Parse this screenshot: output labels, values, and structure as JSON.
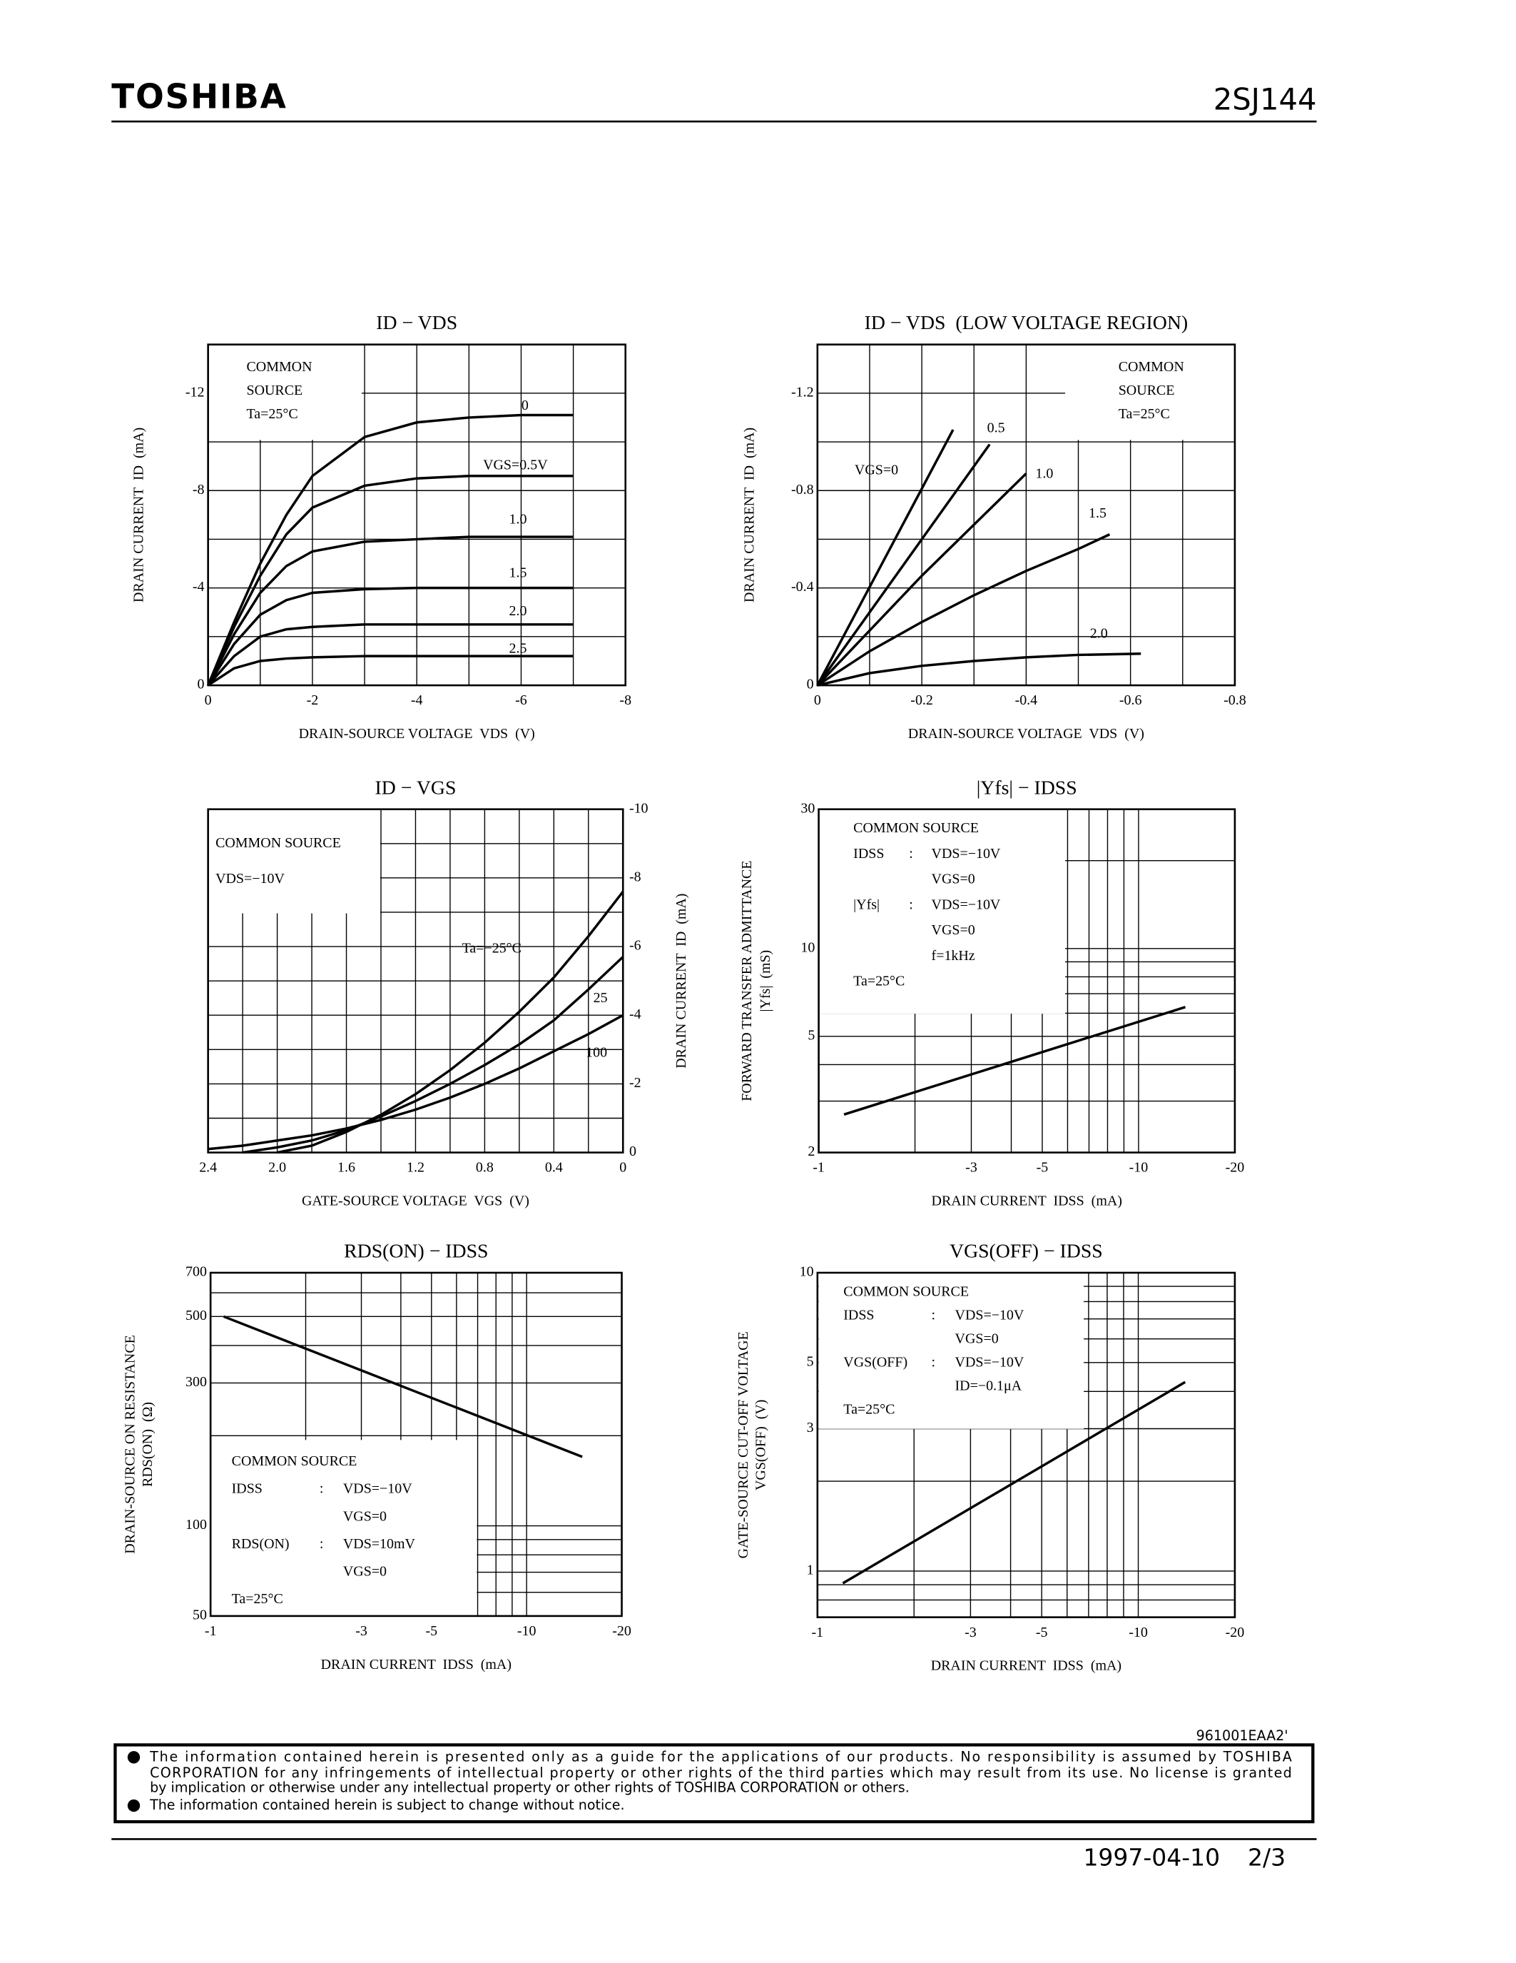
{
  "header": {
    "logo": "TOSHIBA",
    "part": "2SJ144"
  },
  "chart_data": [
    {
      "type": "line",
      "title": "ID − VDS",
      "x_label": "DRAIN-SOURCE VOLTAGE  VDS  (V)",
      "y_label": [
        "DRAIN CURRENT  ID  (mA)"
      ],
      "xscale": "linear",
      "yscale": "linear",
      "y_axis_side": "left",
      "xlim": [
        0,
        -8
      ],
      "ylim": [
        0,
        -14
      ],
      "xticks": [
        0,
        -2,
        -4,
        -6,
        -8
      ],
      "yticks": [
        0,
        -4,
        -8,
        -12
      ],
      "x_minor_ticks": [
        -1,
        -3,
        -5,
        -7
      ],
      "y_minor_ticks": [
        -2,
        -6,
        -10
      ],
      "grid": true,
      "color": "#000000",
      "annotation": [
        [
          "COMMON"
        ],
        [
          "SOURCE"
        ],
        [
          "Ta=25°C"
        ]
      ],
      "x": [
        0,
        -0.5,
        -1,
        -1.5,
        -2,
        -3,
        -4,
        -5,
        -6,
        -7
      ],
      "series": [
        {
          "name": "0",
          "values": [
            0,
            -2.6,
            -5.0,
            -7.0,
            -8.6,
            -10.2,
            -10.8,
            -11.0,
            -11.1,
            -11.1
          ]
        },
        {
          "name": "VGS=0.5V",
          "values": [
            0,
            -2.4,
            -4.5,
            -6.2,
            -7.3,
            -8.2,
            -8.5,
            -8.6,
            -8.6,
            -8.6
          ]
        },
        {
          "name": "1.0",
          "values": [
            0,
            -2.1,
            -3.8,
            -4.9,
            -5.5,
            -5.9,
            -6.0,
            -6.1,
            -6.1,
            -6.1
          ]
        },
        {
          "name": "1.5",
          "values": [
            0,
            -1.7,
            -2.9,
            -3.5,
            -3.8,
            -3.95,
            -4.0,
            -4.0,
            -4.0,
            -4.0
          ]
        },
        {
          "name": "2.0",
          "values": [
            0,
            -1.2,
            -2.0,
            -2.3,
            -2.4,
            -2.5,
            -2.5,
            -2.5,
            -2.5,
            -2.5
          ]
        },
        {
          "name": "2.5",
          "values": [
            0,
            -0.7,
            -1.0,
            -1.1,
            -1.15,
            -1.2,
            -1.2,
            -1.2,
            -1.2,
            -1.2
          ]
        }
      ]
    },
    {
      "type": "line",
      "title": "ID − VDS  (LOW VOLTAGE REGION)",
      "x_label": "DRAIN-SOURCE VOLTAGE  VDS  (V)",
      "y_label": [
        "DRAIN CURRENT  ID  (mA)"
      ],
      "xscale": "linear",
      "yscale": "linear",
      "y_axis_side": "left",
      "xlim": [
        0,
        -0.8
      ],
      "ylim": [
        0,
        -1.4
      ],
      "xticks": [
        0,
        -0.2,
        -0.4,
        -0.6,
        -0.8
      ],
      "yticks": [
        0,
        -0.4,
        -0.8,
        -1.2
      ],
      "x_minor_ticks": [
        -0.1,
        -0.3,
        -0.5,
        -0.7
      ],
      "y_minor_ticks": [
        -0.2,
        -0.6,
        -1.0
      ],
      "grid": true,
      "color": "#000000",
      "annotation": [
        [
          "COMMON"
        ],
        [
          "SOURCE"
        ],
        [
          "Ta=25°C"
        ]
      ],
      "series": [
        {
          "name": "VGS=0",
          "x": [
            0,
            -0.26
          ],
          "values": [
            0,
            -1.05
          ]
        },
        {
          "name": "0.5",
          "x": [
            0,
            -0.33
          ],
          "values": [
            0,
            -0.99
          ]
        },
        {
          "name": "1.0",
          "x": [
            0,
            -0.2,
            -0.4
          ],
          "values": [
            0,
            -0.45,
            -0.87
          ]
        },
        {
          "name": "1.5",
          "x": [
            0,
            -0.1,
            -0.2,
            -0.3,
            -0.4,
            -0.5,
            -0.56
          ],
          "values": [
            0,
            -0.14,
            -0.26,
            -0.37,
            -0.47,
            -0.56,
            -0.62
          ]
        },
        {
          "name": "2.0",
          "x": [
            0,
            -0.1,
            -0.2,
            -0.3,
            -0.4,
            -0.5,
            -0.62
          ],
          "values": [
            0,
            -0.05,
            -0.08,
            -0.1,
            -0.115,
            -0.125,
            -0.13
          ]
        }
      ]
    },
    {
      "type": "line",
      "title": "ID − VGS",
      "x_label": "GATE-SOURCE VOLTAGE  VGS  (V)",
      "y_label": [
        "DRAIN CURRENT  ID  (mA)"
      ],
      "xscale": "linear",
      "yscale": "linear",
      "y_axis_side": "right",
      "xlim": [
        2.4,
        0
      ],
      "ylim": [
        0,
        -10
      ],
      "xticks": [
        2.4,
        {
          "value": 2,
          "label": "2.0"
        },
        1.6,
        1.2,
        0.8,
        0.4,
        0
      ],
      "yticks": [
        0,
        -2,
        -4,
        -6,
        -8,
        -10
      ],
      "x_minor_ticks": [
        2.2,
        1.8,
        1.4,
        1.0,
        0.6,
        0.2
      ],
      "y_minor_ticks": [
        -1,
        -3,
        -5,
        -7,
        -9
      ],
      "grid": true,
      "color": "#000000",
      "annotation": [
        [
          "COMMON SOURCE"
        ],
        [
          "VDS=−10V"
        ]
      ],
      "series": [
        {
          "name": "Ta=−25°C",
          "x": [
            2.0,
            1.8,
            1.6,
            1.4,
            1.2,
            1.0,
            0.8,
            0.6,
            0.4,
            0.2,
            0
          ],
          "values": [
            0,
            -0.2,
            -0.6,
            -1.1,
            -1.7,
            -2.4,
            -3.2,
            -4.1,
            -5.1,
            -6.3,
            -7.6
          ]
        },
        {
          "name": "25",
          "x": [
            2.2,
            2.0,
            1.8,
            1.6,
            1.4,
            1.2,
            1.0,
            0.8,
            0.6,
            0.4,
            0.2,
            0
          ],
          "values": [
            0,
            -0.15,
            -0.35,
            -0.65,
            -1.05,
            -1.5,
            -2.0,
            -2.55,
            -3.15,
            -3.85,
            -4.75,
            -5.7
          ]
        },
        {
          "name": "100",
          "x": [
            2.4,
            2.2,
            2.0,
            1.8,
            1.6,
            1.4,
            1.2,
            1.0,
            0.8,
            0.6,
            0.4,
            0.2,
            0
          ],
          "values": [
            -0.1,
            -0.2,
            -0.35,
            -0.5,
            -0.7,
            -0.95,
            -1.25,
            -1.6,
            -2.0,
            -2.45,
            -2.95,
            -3.45,
            -4.0
          ]
        }
      ]
    },
    {
      "type": "line",
      "title": "|Yfs| − IDSS",
      "x_label": "DRAIN CURRENT  IDSS  (mA)",
      "y_label": [
        "FORWARD TRANSFER ADMITTANCE",
        "|Yfs|  (mS)"
      ],
      "xscale": "log",
      "yscale": "log",
      "y_axis_side": "left",
      "xlim": [
        -1,
        -20
      ],
      "ylim": [
        2,
        30
      ],
      "xticks": [
        -1,
        -3,
        -5,
        -10,
        -20
      ],
      "yticks": [
        2,
        5,
        10,
        30
      ],
      "x_minor_ticks": [
        -2,
        -4,
        -6,
        -7,
        -8,
        -9
      ],
      "y_minor_ticks": [
        3,
        4,
        6,
        7,
        8,
        9,
        20
      ],
      "grid": true,
      "color": "#000000",
      "annotation": [
        [
          "COMMON SOURCE"
        ],
        [
          "IDSS",
          ":",
          "VDS=−10V"
        ],
        [
          "VGS=0"
        ],
        [
          "|Yfs|",
          ":",
          "VDS=−10V"
        ],
        [
          "VGS=0"
        ],
        [
          "f=1kHz"
        ],
        [
          "Ta=25°C"
        ]
      ],
      "series": [
        {
          "name": "|Yfs|",
          "x": [
            -1.2,
            -14
          ],
          "values": [
            2.7,
            6.3
          ]
        }
      ]
    },
    {
      "type": "line",
      "title": "RDS(ON) − IDSS",
      "x_label": "DRAIN CURRENT  IDSS  (mA)",
      "y_label": [
        "DRAIN-SOURCE ON RESISTANCE",
        "RDS(ON)  (Ω)"
      ],
      "xscale": "log",
      "yscale": "log",
      "y_axis_side": "left",
      "xlim": [
        -1,
        -20
      ],
      "ylim": [
        50,
        700
      ],
      "xticks": [
        -1,
        -3,
        -5,
        -10,
        -20
      ],
      "yticks": [
        50,
        100,
        300,
        500,
        700
      ],
      "x_minor_ticks": [
        -2,
        -4,
        -6,
        -7,
        -8,
        -9
      ],
      "y_minor_ticks": [
        60,
        70,
        80,
        90,
        200,
        400,
        600
      ],
      "grid": true,
      "color": "#000000",
      "annotation": [
        [
          "COMMON SOURCE"
        ],
        [
          "IDSS",
          ":",
          "VDS=−10V"
        ],
        [
          "VGS=0"
        ],
        [
          "RDS(ON)",
          ":",
          "VDS=10mV"
        ],
        [
          "VGS=0"
        ],
        [
          "Ta=25°C"
        ]
      ],
      "series": [
        {
          "name": "RDS(ON)",
          "x": [
            -1.1,
            -15
          ],
          "values": [
            500,
            170
          ]
        }
      ]
    },
    {
      "type": "line",
      "title": "VGS(OFF) − IDSS",
      "x_label": "DRAIN CURRENT  IDSS  (mA)",
      "y_label": [
        "GATE-SOURCE CUT-OFF VOLTAGE",
        "VGS(OFF)  (V)"
      ],
      "xscale": "log",
      "yscale": "log",
      "y_axis_side": "left",
      "xlim": [
        -1,
        -20
      ],
      "ylim": [
        0.7,
        10
      ],
      "xticks": [
        -1,
        -3,
        -5,
        -10,
        -20
      ],
      "yticks": [
        1,
        3,
        5,
        10
      ],
      "x_minor_ticks": [
        -2,
        -4,
        -6,
        -7,
        -8,
        -9
      ],
      "y_minor_ticks": [
        0.8,
        0.9,
        2,
        4,
        6,
        7,
        8,
        9
      ],
      "grid": true,
      "color": "#000000",
      "annotation": [
        [
          "COMMON SOURCE"
        ],
        [
          "IDSS",
          ":",
          "VDS=−10V"
        ],
        [
          "VGS=0"
        ],
        [
          "VGS(OFF)",
          ":",
          "VDS=−10V"
        ],
        [
          "ID=−0.1μA"
        ],
        [
          "Ta=25°C"
        ]
      ],
      "series": [
        {
          "name": "VGS(OFF)",
          "x": [
            -1.2,
            -14
          ],
          "values": [
            0.91,
            4.3
          ]
        }
      ]
    }
  ],
  "footer": {
    "code": "961001EAA2'",
    "notes": [
      {
        "lines": [
          "The information contained herein is presented only as a guide for the applications of our products. No responsibility is assumed by TOSHIBA",
          "CORPORATION for any infringements of intellectual property or other rights of the third parties which may result from its use. No license is granted",
          "by implication or otherwise under any intellectual property or other rights of TOSHIBA CORPORATION or others."
        ]
      },
      {
        "lines": [
          "The information contained herein is subject to change without notice."
        ]
      }
    ],
    "date": "1997-04-10",
    "page": "2/3"
  }
}
